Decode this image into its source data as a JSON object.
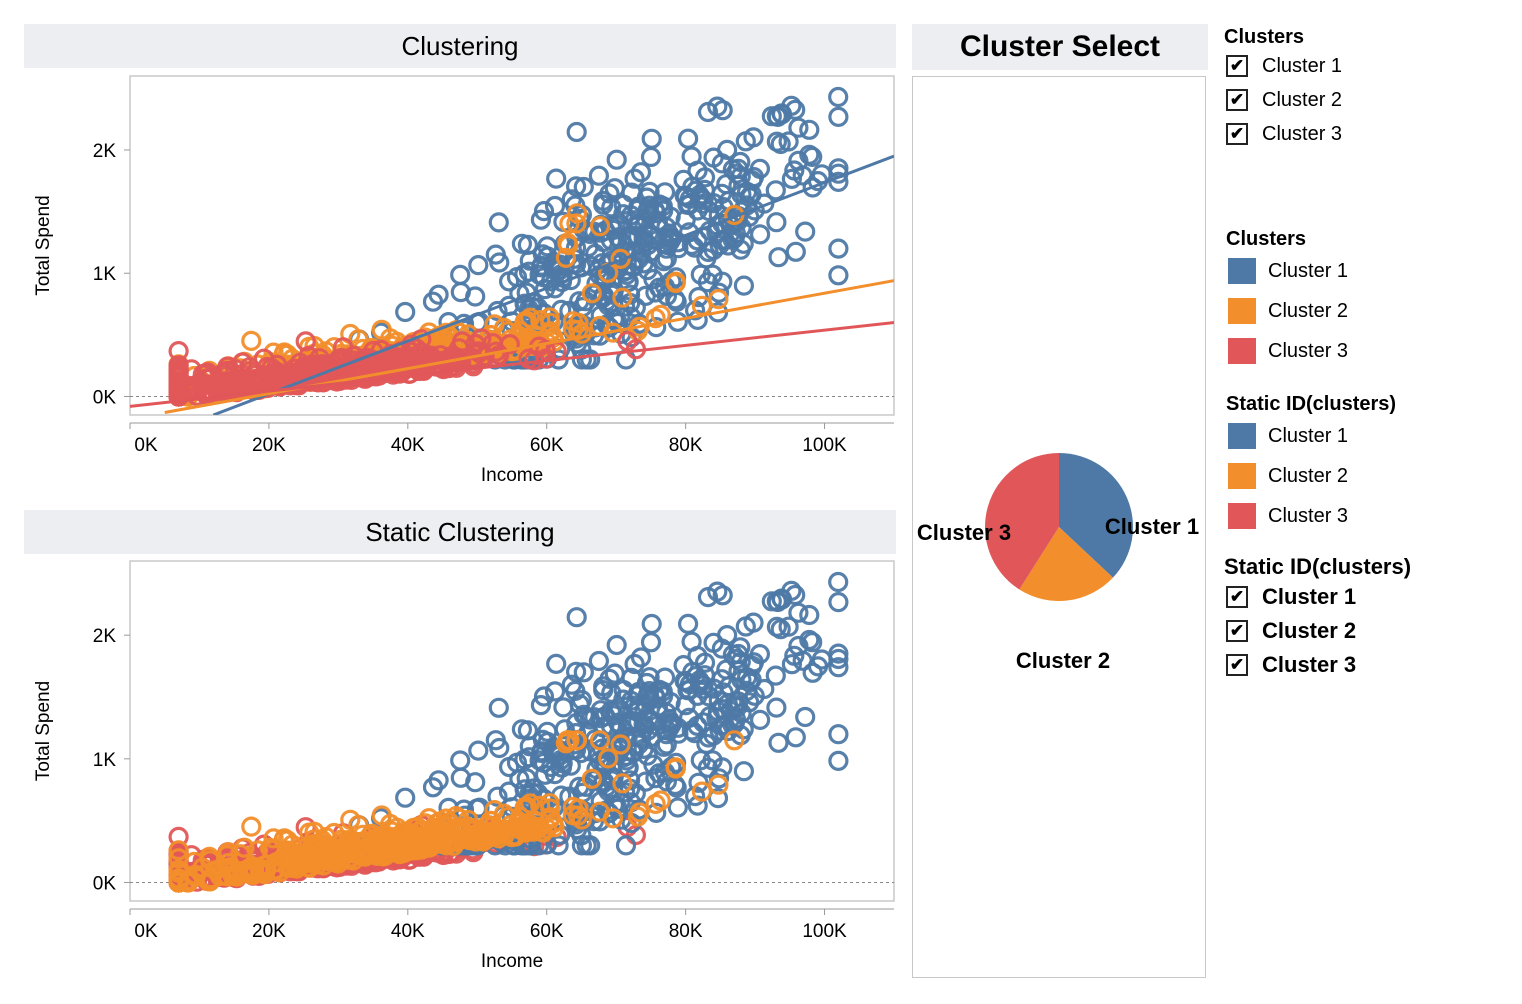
{
  "panels": {
    "clustering_title": "Clustering",
    "static_title": "Static Clustering",
    "select_title": "Cluster Select"
  },
  "colors": {
    "cluster_1": "#4e79a7",
    "cluster_2": "#f28e2b",
    "cluster_3": "#e15759"
  },
  "legends": {
    "clusters_filter": {
      "title": "Clusters",
      "items": [
        "Cluster 1",
        "Cluster 2",
        "Cluster 3"
      ],
      "checked": [
        true,
        true,
        true
      ]
    },
    "clusters_color": {
      "title": "Clusters",
      "items": [
        "Cluster 1",
        "Cluster 2",
        "Cluster 3"
      ]
    },
    "static_color": {
      "title": "Static ID(clusters)",
      "items": [
        "Cluster 1",
        "Cluster 2",
        "Cluster 3"
      ]
    },
    "static_filter": {
      "title": "Static ID(clusters)",
      "items": [
        "Cluster 1",
        "Cluster 2",
        "Cluster 3"
      ],
      "checked": [
        true,
        true,
        true
      ]
    }
  },
  "chart_data": [
    {
      "type": "scatter",
      "title": "Clustering",
      "xlabel": "Income",
      "ylabel": "Total Spend",
      "xlim": [
        0,
        110000
      ],
      "ylim": [
        -150,
        2600
      ],
      "x_ticks": [
        "0K",
        "20K",
        "40K",
        "60K",
        "80K",
        "100K"
      ],
      "y_ticks": [
        "0K",
        "1K",
        "2K"
      ],
      "grid": false,
      "marker": "hollow circle",
      "series": [
        {
          "name": "Cluster 1",
          "color": "#4e79a7",
          "x_range": [
            33000,
            102000
          ],
          "y_range": [
            300,
            2430
          ],
          "trend": [
            [
              12000,
              -150
            ],
            [
              110000,
              1950
            ]
          ]
        },
        {
          "name": "Cluster 2",
          "color": "#f28e2b",
          "x_range": [
            7000,
            87000
          ],
          "y_range": [
            0,
            1750
          ],
          "trend": [
            [
              5000,
              -130
            ],
            [
              110000,
              940
            ]
          ]
        },
        {
          "name": "Cluster 3",
          "color": "#e15759",
          "x_range": [
            7000,
            75000
          ],
          "y_range": [
            0,
            850
          ],
          "trend": [
            [
              0,
              -80
            ],
            [
              110000,
              600
            ]
          ]
        }
      ],
      "reference_line": {
        "y": 0,
        "style": "dashed"
      }
    },
    {
      "type": "scatter",
      "title": "Static Clustering",
      "xlabel": "Income",
      "ylabel": "Total Spend",
      "xlim": [
        0,
        110000
      ],
      "ylim": [
        -150,
        2600
      ],
      "x_ticks": [
        "0K",
        "20K",
        "40K",
        "60K",
        "80K",
        "100K"
      ],
      "y_ticks": [
        "0K",
        "1K",
        "2K"
      ],
      "grid": false,
      "marker": "hollow circle",
      "series": [
        {
          "name": "Cluster 1",
          "color": "#4e79a7",
          "x_range": [
            33000,
            102000
          ],
          "y_range": [
            300,
            2430
          ]
        },
        {
          "name": "Cluster 2",
          "color": "#f28e2b",
          "x_range": [
            7000,
            87000
          ],
          "y_range": [
            0,
            1150
          ]
        },
        {
          "name": "Cluster 3",
          "color": "#e15759",
          "x_range": [
            7000,
            75000
          ],
          "y_range": [
            0,
            850
          ]
        }
      ],
      "reference_line": {
        "y": 0,
        "style": "dashed"
      }
    },
    {
      "type": "pie",
      "title": "Cluster Select",
      "categories": [
        "Cluster 1",
        "Cluster 2",
        "Cluster 3"
      ],
      "values": [
        37,
        22,
        41
      ],
      "colors": [
        "#4e79a7",
        "#f28e2b",
        "#e15759"
      ],
      "labels": [
        "Cluster 1",
        "Cluster 2",
        "Cluster 3"
      ]
    }
  ]
}
